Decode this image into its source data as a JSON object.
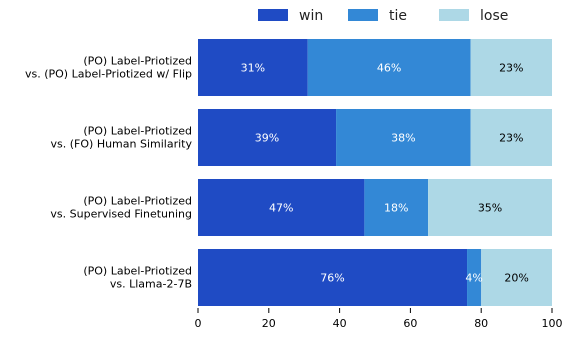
{
  "chart_data": {
    "type": "bar",
    "orientation": "horizontal",
    "stacked": true,
    "title": "",
    "xlabel": "",
    "ylabel": "",
    "xlim": [
      0,
      100
    ],
    "xticks": [
      0,
      20,
      40,
      60,
      80,
      100
    ],
    "grid": false,
    "legend_position": "top",
    "categories": [
      [
        "(PO) Label-Priotized",
        "vs. (PO) Label-Priotized w/ Flip"
      ],
      [
        "(PO) Label-Priotized",
        "vs. (FO) Human Similarity"
      ],
      [
        "(PO) Label-Priotized",
        "vs. Supervised Finetuning"
      ],
      [
        "(PO) Label-Priotized",
        "vs. Llama-2-7B"
      ]
    ],
    "series": [
      {
        "name": "win",
        "color": "#1f4bc4",
        "label_color": "#ffffff",
        "values": [
          31,
          39,
          47,
          76
        ]
      },
      {
        "name": "tie",
        "color": "#3388d6",
        "label_color": "#ffffff",
        "values": [
          46,
          38,
          18,
          4
        ]
      },
      {
        "name": "lose",
        "color": "#add8e6",
        "label_color": "#000000",
        "values": [
          23,
          23,
          35,
          20
        ]
      }
    ],
    "value_suffix": "%"
  }
}
